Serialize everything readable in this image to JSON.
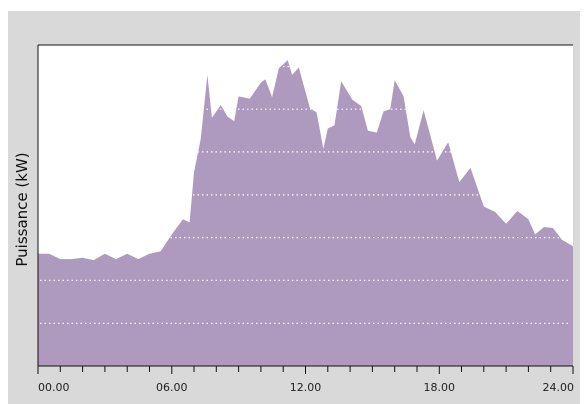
{
  "chart_data": {
    "type": "area",
    "ylabel": "Puissance (kW)",
    "xlabel": "",
    "title": "",
    "xlim": [
      0,
      24
    ],
    "ylim": [
      0,
      1
    ],
    "grid": {
      "y": "dotted-white",
      "x": "off"
    },
    "x_tick_labels": [
      {
        "x": 0,
        "label": "00.00"
      },
      {
        "x": 6,
        "label": "06.00"
      },
      {
        "x": 12,
        "label": "12.00"
      },
      {
        "x": 18,
        "label": "18.00"
      },
      {
        "x": 24,
        "label": "24.00"
      }
    ],
    "x_minor_ticks": [
      1,
      2,
      3,
      4,
      5,
      7,
      8,
      9,
      10,
      11,
      13,
      14,
      15,
      16,
      17,
      19,
      20,
      21,
      22,
      23
    ],
    "y_gridlines": [
      0.133,
      0.267,
      0.4,
      0.533,
      0.667,
      0.8,
      0.933
    ],
    "series": [
      {
        "color": "#ae99bf",
        "points": [
          [
            0,
            0.35
          ],
          [
            0.5,
            0.35
          ],
          [
            1,
            0.333
          ],
          [
            1.5,
            0.333
          ],
          [
            2,
            0.337
          ],
          [
            2.5,
            0.33
          ],
          [
            3,
            0.35
          ],
          [
            3.5,
            0.333
          ],
          [
            4,
            0.35
          ],
          [
            4.5,
            0.333
          ],
          [
            5,
            0.35
          ],
          [
            5.5,
            0.357
          ],
          [
            6,
            0.41
          ],
          [
            6.5,
            0.457
          ],
          [
            6.8,
            0.447
          ],
          [
            7,
            0.603
          ],
          [
            7.3,
            0.707
          ],
          [
            7.6,
            0.907
          ],
          [
            7.8,
            0.773
          ],
          [
            8.2,
            0.813
          ],
          [
            8.5,
            0.777
          ],
          [
            8.8,
            0.763
          ],
          [
            9,
            0.84
          ],
          [
            9.5,
            0.833
          ],
          [
            10,
            0.883
          ],
          [
            10.2,
            0.893
          ],
          [
            10.5,
            0.837
          ],
          [
            10.8,
            0.927
          ],
          [
            11.2,
            0.953
          ],
          [
            11.4,
            0.907
          ],
          [
            11.7,
            0.93
          ],
          [
            12.2,
            0.803
          ],
          [
            12.5,
            0.79
          ],
          [
            12.8,
            0.677
          ],
          [
            13,
            0.74
          ],
          [
            13.3,
            0.75
          ],
          [
            13.6,
            0.887
          ],
          [
            14.1,
            0.83
          ],
          [
            14.5,
            0.81
          ],
          [
            14.8,
            0.733
          ],
          [
            15.2,
            0.727
          ],
          [
            15.5,
            0.793
          ],
          [
            15.8,
            0.8
          ],
          [
            16,
            0.89
          ],
          [
            16.4,
            0.84
          ],
          [
            16.7,
            0.713
          ],
          [
            16.9,
            0.69
          ],
          [
            17.3,
            0.797
          ],
          [
            17.9,
            0.64
          ],
          [
            18.4,
            0.697
          ],
          [
            18.9,
            0.573
          ],
          [
            19.4,
            0.617
          ],
          [
            20,
            0.497
          ],
          [
            20.5,
            0.48
          ],
          [
            21,
            0.443
          ],
          [
            21.5,
            0.483
          ],
          [
            22,
            0.457
          ],
          [
            22.3,
            0.41
          ],
          [
            22.7,
            0.433
          ],
          [
            23.1,
            0.43
          ],
          [
            23.5,
            0.393
          ],
          [
            24,
            0.373
          ]
        ]
      }
    ]
  },
  "style": {
    "panel_color": "#d9d9d9",
    "plot_background": "#ffffff",
    "area_color": "#ae99bf",
    "grid_color": "#ffffff",
    "axis_color": "#111111"
  }
}
